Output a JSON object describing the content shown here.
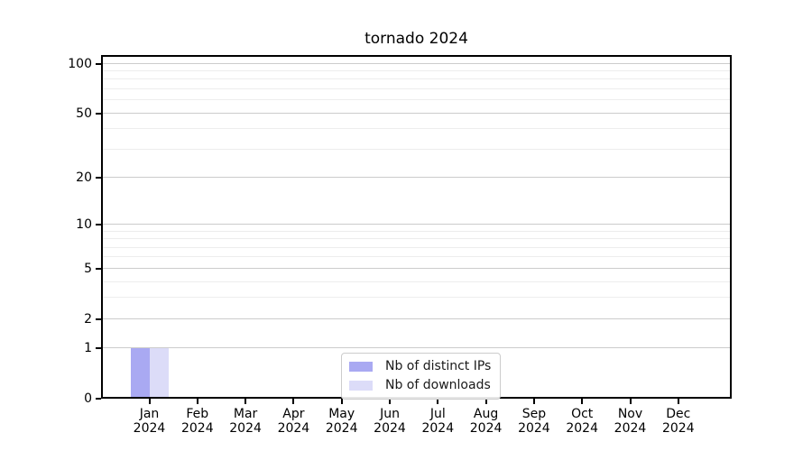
{
  "title": "tornado 2024",
  "colors": {
    "distinct_ips": "#a9a9f2",
    "downloads": "#dcdcf8",
    "grid_major": "#cccccc",
    "grid_minor": "#ededed",
    "axis": "#000000",
    "background": "#ffffff"
  },
  "legend": {
    "items": [
      {
        "label": "Nb of distinct IPs",
        "color": "#a9a9f2"
      },
      {
        "label": "Nb of downloads",
        "color": "#dcdcf8"
      }
    ]
  },
  "chart_data": {
    "type": "bar",
    "title": "tornado 2024",
    "categories": [
      "Jan 2024",
      "Feb 2024",
      "Mar 2024",
      "Apr 2024",
      "May 2024",
      "Jun 2024",
      "Jul 2024",
      "Aug 2024",
      "Sep 2024",
      "Oct 2024",
      "Nov 2024",
      "Dec 2024"
    ],
    "series": [
      {
        "name": "Nb of distinct IPs",
        "color": "#a9a9f2",
        "values": [
          1,
          0,
          0,
          0,
          0,
          0,
          0,
          0,
          0,
          0,
          0,
          0
        ]
      },
      {
        "name": "Nb of downloads",
        "color": "#dcdcf8",
        "values": [
          1,
          0,
          0,
          0,
          0,
          0,
          0,
          0,
          0,
          0,
          0,
          0
        ]
      }
    ],
    "xlabel": "",
    "ylabel": "",
    "yscale": "log1p",
    "ylim": [
      0,
      113
    ],
    "yticks": [
      0,
      1,
      2,
      5,
      10,
      20,
      50,
      100
    ],
    "yminorticks": [
      3,
      4,
      6,
      7,
      8,
      9,
      30,
      40,
      60,
      70,
      80,
      90
    ],
    "grid": true,
    "legend_position": "lower center"
  }
}
